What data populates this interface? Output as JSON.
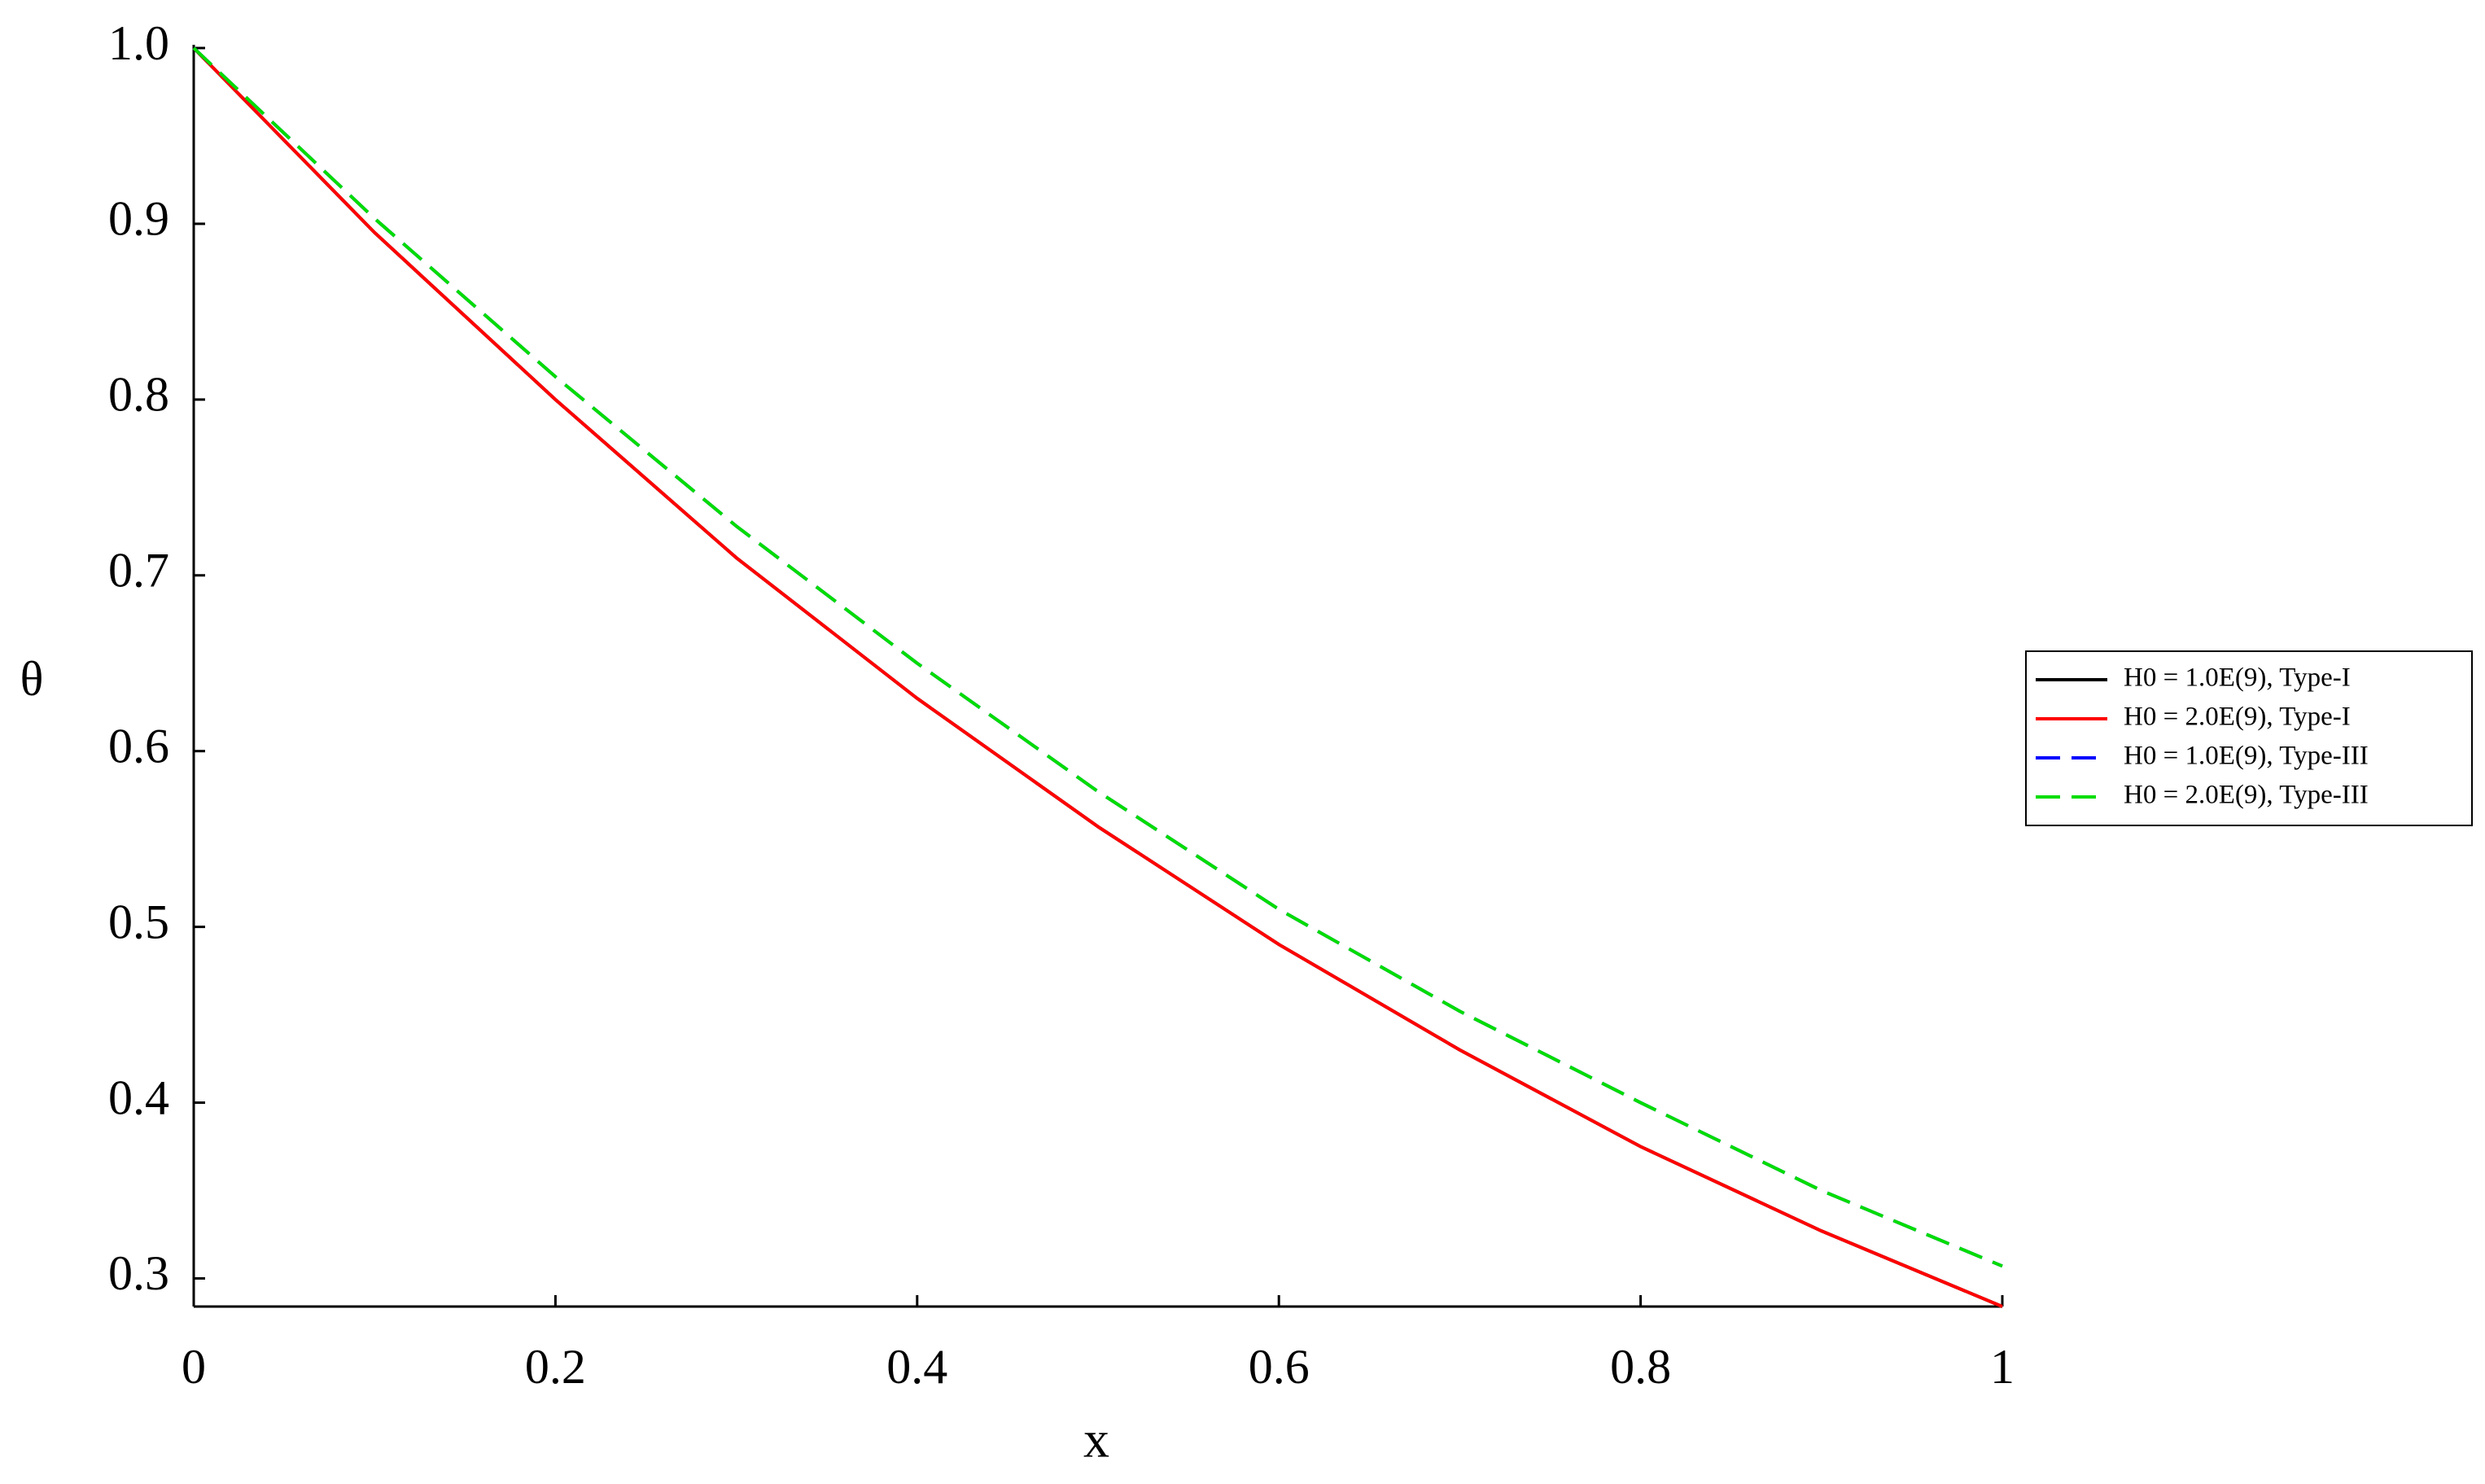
{
  "chart_data": {
    "type": "line",
    "x_label": "x",
    "y_label": "θ",
    "x": [
      0,
      0.1,
      0.2,
      0.3,
      0.4,
      0.5,
      0.6,
      0.7,
      0.8,
      0.9,
      1
    ],
    "series": [
      {
        "name": "H0 = 1.0E(9), Type-I",
        "color": "#000000",
        "linestyle": "solid",
        "values": [
          1.0,
          0.895,
          0.8,
          0.71,
          0.63,
          0.557,
          0.49,
          0.43,
          0.375,
          0.327,
          0.284
        ]
      },
      {
        "name": "H0 = 2.0E(9), Type-I",
        "color": "#ff0000",
        "linestyle": "solid",
        "values": [
          1.0,
          0.895,
          0.8,
          0.71,
          0.63,
          0.557,
          0.49,
          0.43,
          0.375,
          0.327,
          0.284
        ]
      },
      {
        "name": "H0 = 1.0E(9), Type-III",
        "color": "#0000ff",
        "linestyle": "dashed",
        "values": [
          1.0,
          0.903,
          0.813,
          0.728,
          0.65,
          0.577,
          0.51,
          0.452,
          0.4,
          0.35,
          0.307
        ]
      },
      {
        "name": "H0 = 2.0E(9), Type-III",
        "color": "#00dd00",
        "linestyle": "dashed",
        "values": [
          1.0,
          0.903,
          0.813,
          0.728,
          0.65,
          0.577,
          0.51,
          0.452,
          0.4,
          0.35,
          0.307
        ]
      }
    ],
    "xlim": [
      0,
      1
    ],
    "xticks": [
      0,
      0.2,
      0.4,
      0.6,
      0.8,
      1
    ],
    "ylim": [
      0.284,
      1.0
    ],
    "yticks": [
      0.3,
      0.4,
      0.5,
      0.6,
      0.7,
      0.8,
      0.9,
      {
        "value": 1.0,
        "label": "1.0"
      }
    ],
    "legend": "right"
  }
}
